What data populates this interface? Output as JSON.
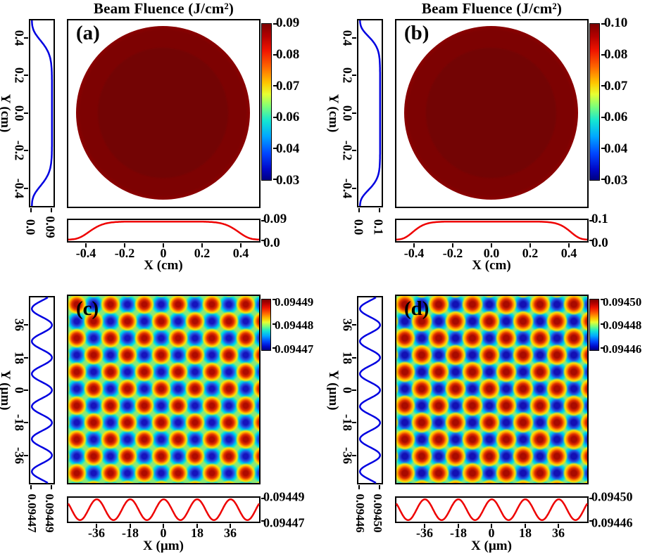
{
  "figure": {
    "background": "#ffffff",
    "axis_color": "#000000",
    "x_profile_color": "#ee0000",
    "y_profile_color": "#0000e0",
    "colormap": "jet",
    "colormap_min_color": "#000082",
    "colormap_max_color": "#7d0000"
  },
  "chart_data": [
    {
      "id": "a",
      "label": "(a)",
      "type": "heatmap",
      "title": "Beam Fluence (J/cm²)",
      "content": "flat-top circular laser beam fluence map",
      "x": {
        "label": "X (cm)",
        "range": [
          -0.5,
          0.5
        ],
        "ticks": [
          "-0.4",
          "-0.2",
          "0",
          "0.2",
          "0.4"
        ]
      },
      "y": {
        "label": "Y (cm)",
        "range": [
          -0.5,
          0.5
        ],
        "ticks": [
          "0.4",
          "0.2",
          "0.0",
          "-0.2",
          "-0.4"
        ]
      },
      "colorbar": {
        "colormap": "jet",
        "range": [
          0.03,
          0.09
        ],
        "tick_labels": [
          "0.09",
          "0.08",
          "0.07",
          "0.06",
          "0.04",
          "0.03"
        ]
      },
      "x_profile": {
        "shape": "flattop",
        "order": 8,
        "half_width": 0.8,
        "color": "#ee0000",
        "max_label": "0.09",
        "min_label": "0.0"
      },
      "y_profile": {
        "shape": "flattop",
        "order": 8,
        "half_width": 0.8,
        "color": "#0000e0",
        "max_label": "0.09",
        "min_label": "0.0"
      }
    },
    {
      "id": "b",
      "label": "(b)",
      "type": "heatmap",
      "title": "Beam Fluence (J/cm²)",
      "content": "flat-top circular laser beam fluence map",
      "x": {
        "label": "X (cm)",
        "range": [
          -0.5,
          0.5
        ],
        "ticks": [
          "-0.4",
          "-0.2",
          "0.0",
          "0.2",
          "0.4"
        ]
      },
      "y": {
        "label": "Y (cm)",
        "range": [
          -0.5,
          0.5
        ],
        "ticks": [
          "0.4",
          "0.2",
          "0.0",
          "-0.2",
          "-0.4"
        ]
      },
      "colorbar": {
        "colormap": "jet",
        "range": [
          0.03,
          0.1
        ],
        "tick_labels": [
          "0.10",
          "0.08",
          "0.07",
          "0.06",
          "0.04",
          "0.03"
        ]
      },
      "x_profile": {
        "shape": "flattop",
        "order": 10,
        "half_width": 0.84,
        "color": "#ee0000",
        "max_label": "0.1",
        "min_label": "0.0"
      },
      "y_profile": {
        "shape": "flattop",
        "order": 10,
        "half_width": 0.84,
        "color": "#0000e0",
        "max_label": "0.1",
        "min_label": "0.0"
      }
    },
    {
      "id": "c",
      "label": "(c)",
      "type": "heatmap",
      "title": "",
      "content": "periodic interference fluence modulation (checkerboard of maxima and minima)",
      "x": {
        "label": "X (µm)",
        "range": [
          -52,
          52
        ],
        "ticks": [
          "-36",
          "-18",
          "0",
          "18",
          "36"
        ]
      },
      "y": {
        "label": "Y (µm)",
        "range": [
          -52,
          52
        ],
        "ticks": [
          "36",
          "18",
          "0",
          "-18",
          "-36"
        ]
      },
      "colorbar": {
        "colormap": "jet",
        "range": [
          0.09447,
          0.09449
        ],
        "tick_labels": [
          "0.09449",
          "0.09448",
          "0.09447"
        ]
      },
      "x_profile": {
        "shape": "cosine",
        "periods": 5.7,
        "color": "#ee0000",
        "max_label": "0.09449",
        "min_label": "0.09447"
      },
      "y_profile": {
        "shape": "cosine",
        "periods": 5.7,
        "color": "#0000e0",
        "max_label": "0.09449",
        "min_label": "0.09447"
      }
    },
    {
      "id": "d",
      "label": "(d)",
      "type": "heatmap",
      "title": "",
      "content": "periodic interference fluence modulation (checkerboard of maxima and minima)",
      "x": {
        "label": "X (µm)",
        "range": [
          -52,
          52
        ],
        "ticks": [
          "-36",
          "-18",
          "0",
          "18",
          "36"
        ]
      },
      "y": {
        "label": "Y (µm)",
        "range": [
          -52,
          52
        ],
        "ticks": [
          "36",
          "18",
          "0",
          "-18",
          "-36"
        ]
      },
      "colorbar": {
        "colormap": "jet",
        "range": [
          0.09446,
          0.0945
        ],
        "tick_labels": [
          "0.09450",
          "0.09448",
          "0.09446"
        ]
      },
      "x_profile": {
        "shape": "cosine",
        "periods": 5.7,
        "color": "#ee0000",
        "max_label": "0.09450",
        "min_label": "0.09446"
      },
      "y_profile": {
        "shape": "cosine",
        "periods": 5.7,
        "color": "#0000e0",
        "max_label": "0.09450",
        "min_label": "0.09446"
      }
    }
  ]
}
